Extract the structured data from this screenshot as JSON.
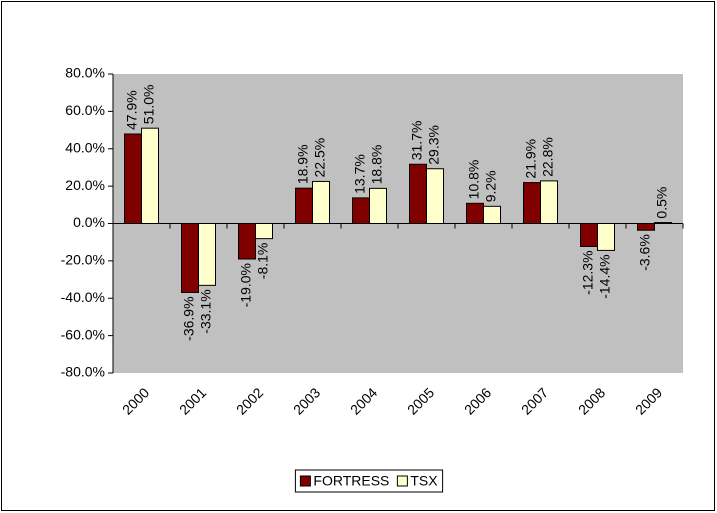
{
  "chart_data": {
    "type": "bar",
    "categories": [
      "2000",
      "2001",
      "2002",
      "2003",
      "2004",
      "2005",
      "2006",
      "2007",
      "2008",
      "2009"
    ],
    "series": [
      {
        "name": "FORTRESS",
        "color": "#800000",
        "values": [
          47.9,
          -36.9,
          -19.0,
          18.9,
          13.7,
          31.7,
          10.8,
          21.9,
          -12.3,
          -3.6
        ],
        "value_labels": [
          "47.9%",
          "-36.9%",
          "-19.0%",
          "18.9%",
          "13.7%",
          "31.7%",
          "10.8%",
          "21.9%",
          "-12.3%",
          "-3.6%"
        ]
      },
      {
        "name": "TSX",
        "color": "#ffffcc",
        "values": [
          51.0,
          -33.1,
          -8.1,
          22.5,
          18.8,
          29.3,
          9.2,
          22.8,
          -14.4,
          0.5
        ],
        "value_labels": [
          "51.0%",
          "-33.1%",
          "-8.1%",
          "22.5%",
          "18.8%",
          "29.3%",
          "9.2%",
          "22.8%",
          "-14.4%",
          "0.5%"
        ]
      }
    ],
    "ylim": [
      -80,
      80
    ],
    "yticks": [
      {
        "value": -80,
        "label": "-80.0%"
      },
      {
        "value": -60,
        "label": "-60.0%"
      },
      {
        "value": -40,
        "label": "-40.0%"
      },
      {
        "value": -20,
        "label": "-20.0%"
      },
      {
        "value": 0,
        "label": "0.0%"
      },
      {
        "value": 20,
        "label": "20.0%"
      },
      {
        "value": 40,
        "label": "40.0%"
      },
      {
        "value": 60,
        "label": "60.0%"
      },
      {
        "value": 80,
        "label": "80.0%"
      }
    ],
    "plot_background": "#c0c0c0",
    "legend": "bottom"
  }
}
